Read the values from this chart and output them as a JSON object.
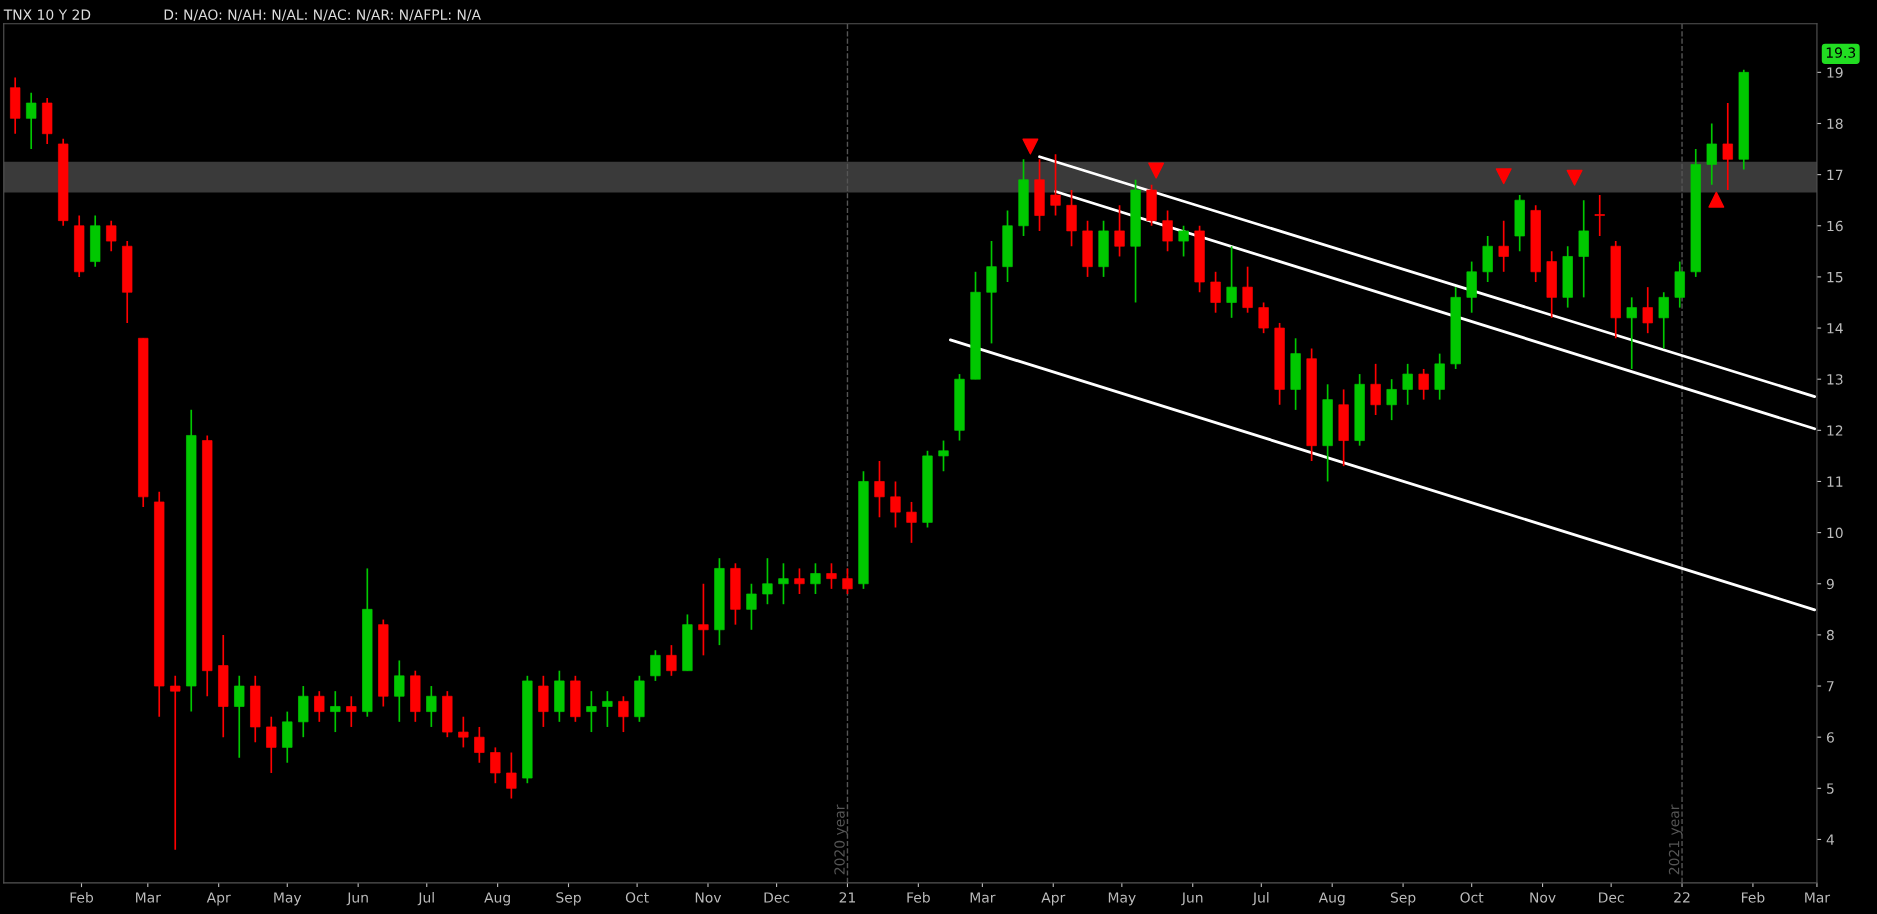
{
  "chart_data": {
    "type": "candlestick",
    "title": "TNX 10 Y 2D",
    "subtitle": "D: N/AO: N/AH: N/AL: N/AC: N/AR: N/AFPL: N/A",
    "xlim": [
      "2019-12-29",
      "2022-03-01"
    ],
    "ylim": [
      3.15,
      19.95
    ],
    "xticks": [
      {
        "value": "2020-02-01",
        "label": "Feb"
      },
      {
        "value": "2020-03-01",
        "label": "Mar"
      },
      {
        "value": "2020-04-01",
        "label": "Apr"
      },
      {
        "value": "2020-05-01",
        "label": "May"
      },
      {
        "value": "2020-06-01",
        "label": "Jun"
      },
      {
        "value": "2020-07-01",
        "label": "Jul"
      },
      {
        "value": "2020-08-01",
        "label": "Aug"
      },
      {
        "value": "2020-09-01",
        "label": "Sep"
      },
      {
        "value": "2020-10-01",
        "label": "Oct"
      },
      {
        "value": "2020-11-01",
        "label": "Nov"
      },
      {
        "value": "2020-12-01",
        "label": "Dec"
      },
      {
        "value": "2021-01-01",
        "label": "21"
      },
      {
        "value": "2021-02-01",
        "label": "Feb"
      },
      {
        "value": "2021-03-01",
        "label": "Mar"
      },
      {
        "value": "2021-04-01",
        "label": "Apr"
      },
      {
        "value": "2021-05-01",
        "label": "May"
      },
      {
        "value": "2021-06-01",
        "label": "Jun"
      },
      {
        "value": "2021-07-01",
        "label": "Jul"
      },
      {
        "value": "2021-08-01",
        "label": "Aug"
      },
      {
        "value": "2021-09-01",
        "label": "Sep"
      },
      {
        "value": "2021-10-01",
        "label": "Oct"
      },
      {
        "value": "2021-11-01",
        "label": "Nov"
      },
      {
        "value": "2021-12-01",
        "label": "Dec"
      },
      {
        "value": "2022-01-01",
        "label": "22"
      },
      {
        "value": "2022-02-01",
        "label": "Feb"
      },
      {
        "value": "2022-03-01",
        "label": "Mar"
      }
    ],
    "yticks": [
      4,
      5,
      6,
      7,
      8,
      9,
      10,
      11,
      12,
      13,
      14,
      15,
      16,
      17,
      18,
      19
    ],
    "bands": [
      {
        "axis": "y",
        "from": 16.65,
        "to": 17.25,
        "color": "#3a3a3a"
      }
    ],
    "ref_lines": [
      {
        "axis": "x",
        "value": "2021-01-01",
        "label": "2020 year",
        "color": "#555555",
        "line_style": "dashed"
      },
      {
        "axis": "x",
        "value": "2022-01-01",
        "label": "2021 year",
        "color": "#555555",
        "line_style": "dashed"
      }
    ],
    "annotations": [
      "19.3"
    ],
    "series": [
      {
        "colors": [
          "#ff0000",
          "#00c800",
          "#ff0000",
          "#ff0000",
          "#ff0000",
          "#00c800",
          "#ff0000",
          "#ff0000",
          "#ff0000",
          "#ff0000",
          "#ff0000",
          "#00c800",
          "#ff0000",
          "#ff0000",
          "#00c800",
          "#ff0000",
          "#ff0000",
          "#00c800",
          "#00c800",
          "#ff0000",
          "#00c800",
          "#ff0000",
          "#00c800",
          "#ff0000",
          "#00c800",
          "#ff0000",
          "#00c800",
          "#ff0000",
          "#ff0000",
          "#ff0000",
          "#ff0000",
          "#ff0000",
          "#00c800",
          "#ff0000",
          "#00c800",
          "#ff0000",
          "#00c800",
          "#00c800",
          "#ff0000",
          "#00c800",
          "#00c800",
          "#ff0000",
          "#00c800",
          "#ff0000",
          "#00c800",
          "#ff0000",
          "#00c800",
          "#00c800",
          "#00c800",
          "#ff0000",
          "#00c800",
          "#ff0000",
          "#ff0000",
          "#00c800",
          "#ff0000",
          "#ff0000",
          "#ff0000",
          "#00c800",
          "#00c800",
          "#00c800",
          "#00c800",
          "#00c800",
          "#00c800",
          "#00c800",
          "#ff0000",
          "#ff0000",
          "#ff0000",
          "#ff0000",
          "#00c800",
          "#ff0000",
          "#00c800",
          "#ff0000",
          "#ff0000",
          "#00c800",
          "#ff0000",
          "#ff0000",
          "#00c800",
          "#ff0000",
          "#ff0000",
          "#ff0000",
          "#00c800",
          "#ff0000",
          "#00c800",
          "#ff0000",
          "#00c800",
          "#ff0000",
          "#00c800",
          "#00c800",
          "#ff0000",
          "#00c800",
          "#00c800",
          "#00c800",
          "#00c800",
          "#ff0000",
          "#00c800",
          "#ff0000",
          "#ff0000",
          "#00c800",
          "#00c800",
          "#ff0000",
          "#ff0000",
          "#00c800",
          "#ff0000",
          "#00c800",
          "#00c800",
          "#00c800",
          "#00c800",
          "#ff0000",
          "#00c800"
        ],
        "x": [
          "2020-01-03",
          "2020-01-10",
          "2020-01-17",
          "2020-01-24",
          "2020-01-31",
          "2020-02-07",
          "2020-02-14",
          "2020-02-21",
          "2020-02-28",
          "2020-03-06",
          "2020-03-13",
          "2020-03-20",
          "2020-03-27",
          "2020-04-03",
          "2020-04-10",
          "2020-04-17",
          "2020-04-24",
          "2020-05-01",
          "2020-05-08",
          "2020-05-15",
          "2020-05-22",
          "2020-05-29",
          "2020-06-05",
          "2020-06-12",
          "2020-06-19",
          "2020-06-26",
          "2020-07-03",
          "2020-07-10",
          "2020-07-17",
          "2020-07-24",
          "2020-07-31",
          "2020-08-07",
          "2020-08-14",
          "2020-08-21",
          "2020-08-28",
          "2020-09-04",
          "2020-09-11",
          "2020-09-18",
          "2020-09-25",
          "2020-10-02",
          "2020-10-09",
          "2020-10-16",
          "2020-10-23",
          "2020-10-30",
          "2020-11-06",
          "2020-11-13",
          "2020-11-20",
          "2020-11-27",
          "2020-12-04",
          "2020-12-11",
          "2020-12-18",
          "2020-12-25",
          "2021-01-01",
          "2021-01-08",
          "2021-01-15",
          "2021-01-22",
          "2021-01-29",
          "2021-02-05",
          "2021-02-12",
          "2021-02-19",
          "2021-02-26",
          "2021-03-05",
          "2021-03-12",
          "2021-03-19",
          "2021-03-26",
          "2021-04-02",
          "2021-04-09",
          "2021-04-16",
          "2021-04-23",
          "2021-04-30",
          "2021-05-07",
          "2021-05-14",
          "2021-05-21",
          "2021-05-28",
          "2021-06-04",
          "2021-06-11",
          "2021-06-18",
          "2021-06-25",
          "2021-07-02",
          "2021-07-09",
          "2021-07-16",
          "2021-07-23",
          "2021-07-30",
          "2021-08-06",
          "2021-08-13",
          "2021-08-20",
          "2021-08-27",
          "2021-09-03",
          "2021-09-10",
          "2021-09-17",
          "2021-09-24",
          "2021-10-01",
          "2021-10-08",
          "2021-10-15",
          "2021-10-22",
          "2021-10-29",
          "2021-11-05",
          "2021-11-12",
          "2021-11-19",
          "2021-11-26",
          "2021-12-03",
          "2021-12-10",
          "2021-12-17",
          "2021-12-24",
          "2021-12-31",
          "2022-01-07",
          "2022-01-14",
          "2022-01-21",
          "2022-01-28"
        ],
        "ohlc": [
          [
            18.7,
            18.9,
            17.8,
            18.1
          ],
          [
            18.1,
            18.6,
            17.5,
            18.4
          ],
          [
            18.4,
            18.5,
            17.6,
            17.8
          ],
          [
            17.6,
            17.7,
            16.0,
            16.1
          ],
          [
            16.0,
            16.2,
            15.0,
            15.1
          ],
          [
            15.3,
            16.2,
            15.2,
            16.0
          ],
          [
            16.0,
            16.1,
            15.5,
            15.7
          ],
          [
            15.6,
            15.7,
            14.1,
            14.7
          ],
          [
            13.8,
            13.8,
            10.5,
            10.7
          ],
          [
            10.6,
            10.8,
            6.4,
            7.0
          ],
          [
            7.0,
            7.2,
            3.8,
            6.9
          ],
          [
            7.0,
            12.4,
            6.5,
            11.9
          ],
          [
            11.8,
            11.9,
            6.8,
            7.3
          ],
          [
            7.4,
            8.0,
            6.0,
            6.6
          ],
          [
            6.6,
            7.2,
            5.6,
            7.0
          ],
          [
            7.0,
            7.2,
            5.9,
            6.2
          ],
          [
            6.2,
            6.4,
            5.3,
            5.8
          ],
          [
            5.8,
            6.5,
            5.5,
            6.3
          ],
          [
            6.3,
            7.0,
            6.0,
            6.8
          ],
          [
            6.8,
            6.9,
            6.3,
            6.5
          ],
          [
            6.5,
            6.9,
            6.1,
            6.6
          ],
          [
            6.6,
            6.8,
            6.2,
            6.5
          ],
          [
            6.5,
            9.3,
            6.4,
            8.5
          ],
          [
            8.2,
            8.3,
            6.6,
            6.8
          ],
          [
            6.8,
            7.5,
            6.3,
            7.2
          ],
          [
            7.2,
            7.3,
            6.3,
            6.5
          ],
          [
            6.5,
            7.0,
            6.2,
            6.8
          ],
          [
            6.8,
            6.9,
            6.0,
            6.1
          ],
          [
            6.1,
            6.4,
            5.8,
            6.0
          ],
          [
            6.0,
            6.2,
            5.5,
            5.7
          ],
          [
            5.7,
            5.8,
            5.1,
            5.3
          ],
          [
            5.3,
            5.7,
            4.8,
            5.0
          ],
          [
            5.2,
            7.2,
            5.1,
            7.1
          ],
          [
            7.0,
            7.2,
            6.2,
            6.5
          ],
          [
            6.5,
            7.3,
            6.3,
            7.1
          ],
          [
            7.1,
            7.2,
            6.3,
            6.4
          ],
          [
            6.5,
            6.9,
            6.1,
            6.6
          ],
          [
            6.6,
            6.9,
            6.2,
            6.7
          ],
          [
            6.7,
            6.8,
            6.1,
            6.4
          ],
          [
            6.4,
            7.2,
            6.3,
            7.1
          ],
          [
            7.2,
            7.7,
            7.1,
            7.6
          ],
          [
            7.6,
            7.8,
            7.2,
            7.3
          ],
          [
            7.3,
            8.4,
            7.3,
            8.2
          ],
          [
            8.2,
            9.0,
            7.6,
            8.1
          ],
          [
            8.1,
            9.5,
            7.8,
            9.3
          ],
          [
            9.3,
            9.4,
            8.2,
            8.5
          ],
          [
            8.5,
            9.0,
            8.1,
            8.8
          ],
          [
            8.8,
            9.5,
            8.6,
            9.0
          ],
          [
            9.0,
            9.4,
            8.6,
            9.1
          ],
          [
            9.1,
            9.3,
            8.8,
            9.0
          ],
          [
            9.0,
            9.4,
            8.8,
            9.2
          ],
          [
            9.2,
            9.4,
            8.9,
            9.1
          ],
          [
            9.1,
            9.3,
            8.8,
            8.9
          ],
          [
            9.0,
            11.2,
            8.9,
            11.0
          ],
          [
            11.0,
            11.4,
            10.3,
            10.7
          ],
          [
            10.7,
            11.0,
            10.1,
            10.4
          ],
          [
            10.4,
            10.6,
            9.8,
            10.2
          ],
          [
            10.2,
            11.6,
            10.1,
            11.5
          ],
          [
            11.5,
            11.8,
            11.2,
            11.6
          ],
          [
            12.0,
            13.1,
            11.8,
            13.0
          ],
          [
            13.0,
            15.1,
            13.0,
            14.7
          ],
          [
            14.7,
            15.7,
            13.7,
            15.2
          ],
          [
            15.2,
            16.3,
            14.9,
            16.0
          ],
          [
            16.0,
            17.3,
            15.8,
            16.9
          ],
          [
            16.9,
            17.3,
            15.9,
            16.2
          ],
          [
            16.6,
            17.4,
            16.2,
            16.4
          ],
          [
            16.4,
            16.7,
            15.6,
            15.9
          ],
          [
            15.9,
            16.1,
            15.0,
            15.2
          ],
          [
            15.2,
            16.1,
            15.0,
            15.9
          ],
          [
            15.9,
            16.4,
            15.4,
            15.6
          ],
          [
            15.6,
            16.9,
            14.5,
            16.7
          ],
          [
            16.7,
            16.8,
            16.0,
            16.1
          ],
          [
            16.1,
            16.3,
            15.5,
            15.7
          ],
          [
            15.7,
            16.0,
            15.4,
            15.9
          ],
          [
            15.9,
            16.0,
            14.7,
            14.9
          ],
          [
            14.9,
            15.1,
            14.3,
            14.5
          ],
          [
            14.5,
            15.6,
            14.2,
            14.8
          ],
          [
            14.8,
            15.2,
            14.3,
            14.4
          ],
          [
            14.4,
            14.5,
            13.9,
            14.0
          ],
          [
            14.0,
            14.1,
            12.5,
            12.8
          ],
          [
            12.8,
            13.8,
            12.4,
            13.5
          ],
          [
            13.4,
            13.6,
            11.4,
            11.7
          ],
          [
            11.7,
            12.9,
            11.0,
            12.6
          ],
          [
            12.5,
            12.8,
            11.3,
            11.8
          ],
          [
            11.8,
            13.1,
            11.7,
            12.9
          ],
          [
            12.9,
            13.3,
            12.3,
            12.5
          ],
          [
            12.5,
            13.0,
            12.2,
            12.8
          ],
          [
            12.8,
            13.3,
            12.5,
            13.1
          ],
          [
            13.1,
            13.2,
            12.6,
            12.8
          ],
          [
            12.8,
            13.5,
            12.6,
            13.3
          ],
          [
            13.3,
            14.8,
            13.2,
            14.6
          ],
          [
            14.6,
            15.3,
            14.3,
            15.1
          ],
          [
            15.1,
            15.8,
            14.9,
            15.6
          ],
          [
            15.6,
            16.1,
            15.1,
            15.4
          ],
          [
            15.8,
            16.6,
            15.5,
            16.5
          ],
          [
            16.3,
            16.4,
            14.9,
            15.1
          ],
          [
            15.3,
            15.5,
            14.2,
            14.6
          ],
          [
            14.6,
            15.6,
            14.4,
            15.4
          ],
          [
            15.4,
            16.5,
            14.6,
            15.9
          ],
          [
            16.2,
            16.6,
            15.8,
            16.2
          ],
          [
            15.6,
            15.7,
            13.8,
            14.2
          ],
          [
            14.2,
            14.6,
            13.2,
            14.4
          ],
          [
            14.4,
            14.8,
            13.9,
            14.1
          ],
          [
            14.2,
            14.7,
            13.6,
            14.6
          ],
          [
            14.6,
            15.3,
            14.4,
            15.1
          ],
          [
            15.1,
            17.5,
            15.0,
            17.2
          ],
          [
            17.2,
            18.0,
            16.8,
            17.6
          ],
          [
            17.6,
            18.4,
            16.7,
            17.3
          ],
          [
            17.3,
            19.05,
            17.1,
            19.0
          ]
        ]
      },
      {
        "type": "line",
        "color": "#ffffff",
        "x": [
          "2021-03-26",
          "2022-02-28"
        ],
        "values": [
          17.35,
          12.66
        ]
      },
      {
        "type": "line",
        "color": "#ffffff",
        "x": [
          "2021-04-02",
          "2022-02-28"
        ],
        "values": [
          16.67,
          12.03
        ]
      },
      {
        "type": "line",
        "color": "#ffffff",
        "x": [
          "2021-02-15",
          "2022-02-28"
        ],
        "values": [
          13.77,
          8.49
        ]
      },
      {
        "type": "scatter",
        "color": "#ff0000",
        "marker": "triangle-down",
        "x": [
          "2021-03-22",
          "2021-05-16",
          "2021-10-15",
          "2021-11-15"
        ],
        "values": [
          17.55,
          17.08,
          16.97,
          16.94
        ]
      },
      {
        "type": "scatter",
        "color": "#ff0000",
        "marker": "triangle",
        "x": [
          "2022-01-16"
        ],
        "values": [
          16.51
        ]
      }
    ]
  }
}
